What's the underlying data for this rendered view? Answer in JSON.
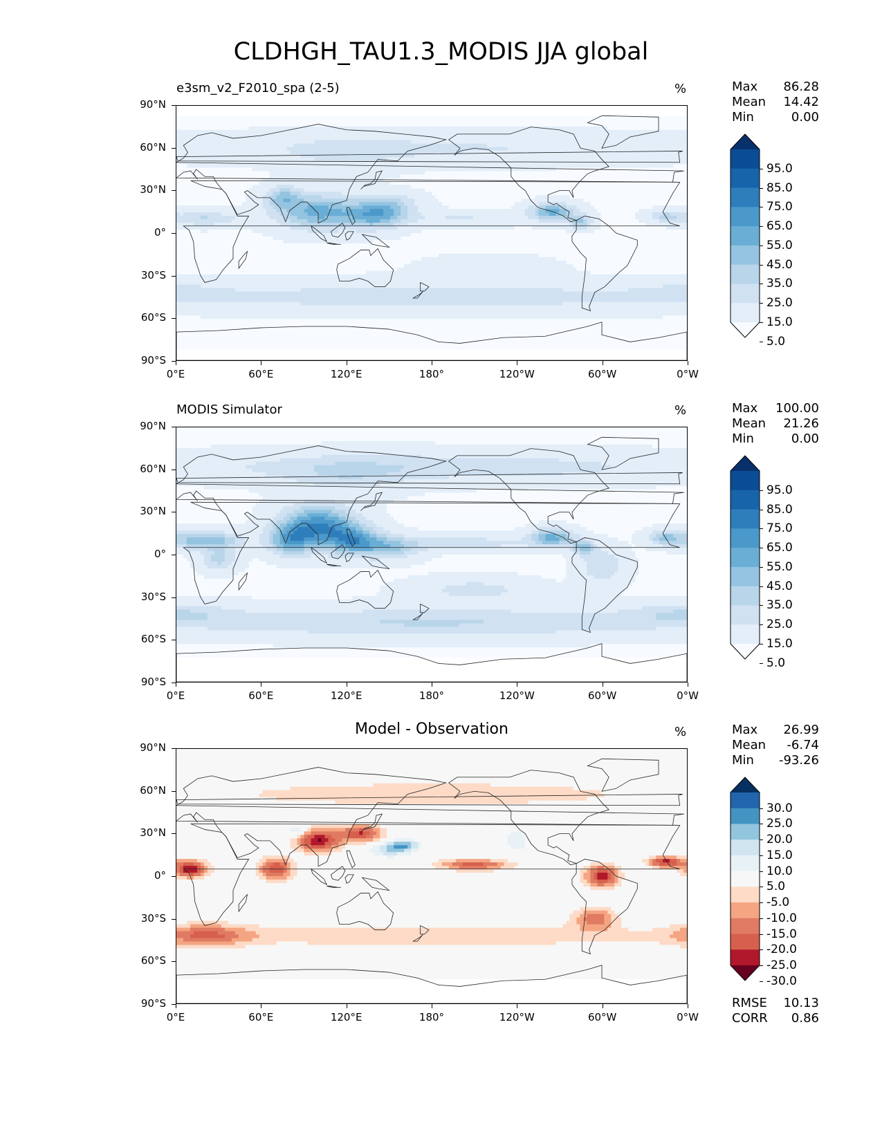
{
  "title": "CLDHGH_TAU1.3_MODIS JJA global",
  "axes": {
    "lat_ticks": [
      "90°N",
      "60°N",
      "30°N",
      "0°",
      "30°S",
      "60°S",
      "90°S"
    ],
    "lon_ticks": [
      "0°E",
      "60°E",
      "120°E",
      "180°",
      "120°W",
      "60°W",
      "0°W"
    ]
  },
  "panels": [
    {
      "title": "e3sm_v2_F2010_spa (2-5)",
      "units": "%",
      "stats": [
        {
          "label": "Max",
          "value": "86.28"
        },
        {
          "label": "Mean",
          "value": "14.42"
        },
        {
          "label": "Min",
          "value": "0.00"
        }
      ],
      "colorbar": {
        "labels": [
          "95.0",
          "85.0",
          "75.0",
          "65.0",
          "55.0",
          "45.0",
          "35.0",
          "25.0",
          "15.0",
          "5.0"
        ],
        "colors": [
          "#08306b",
          "#0b4d94",
          "#1764ab",
          "#2f7ebc",
          "#4b98ca",
          "#6aaed6",
          "#94c4df",
          "#b8d5ea",
          "#d0e1f2",
          "#e3eef9",
          "#f7fbff"
        ]
      },
      "bottom_stats": []
    },
    {
      "title": "MODIS Simulator",
      "units": "%",
      "stats": [
        {
          "label": "Max",
          "value": "100.00"
        },
        {
          "label": "Mean",
          "value": "21.26"
        },
        {
          "label": "Min",
          "value": "0.00"
        }
      ],
      "colorbar": {
        "labels": [
          "95.0",
          "85.0",
          "75.0",
          "65.0",
          "55.0",
          "45.0",
          "35.0",
          "25.0",
          "15.0",
          "5.0"
        ],
        "colors": [
          "#08306b",
          "#0b4d94",
          "#1764ab",
          "#2f7ebc",
          "#4b98ca",
          "#6aaed6",
          "#94c4df",
          "#b8d5ea",
          "#d0e1f2",
          "#e3eef9",
          "#f7fbff"
        ]
      },
      "bottom_stats": []
    },
    {
      "title": "Model - Observation",
      "units": "%",
      "stats": [
        {
          "label": "Max",
          "value": "26.99"
        },
        {
          "label": "Mean",
          "value": "-6.74"
        },
        {
          "label": "Min",
          "value": "-93.26"
        }
      ],
      "colorbar": {
        "labels": [
          "30.0",
          "25.0",
          "20.0",
          "15.0",
          "10.0",
          "5.0",
          "-5.0",
          "-10.0",
          "-15.0",
          "-20.0",
          "-25.0",
          "-30.0"
        ],
        "colors": [
          "#053061",
          "#2166ac",
          "#4393c3",
          "#92c5de",
          "#d1e5f0",
          "#e8f1f6",
          "#f7f7f7",
          "#fddbc7",
          "#f4a582",
          "#e07a63",
          "#d6604d",
          "#b2182b",
          "#67001f"
        ]
      },
      "bottom_stats": [
        {
          "label": "RMSE",
          "value": "10.13"
        },
        {
          "label": "CORR",
          "value": "0.86"
        }
      ]
    }
  ]
}
